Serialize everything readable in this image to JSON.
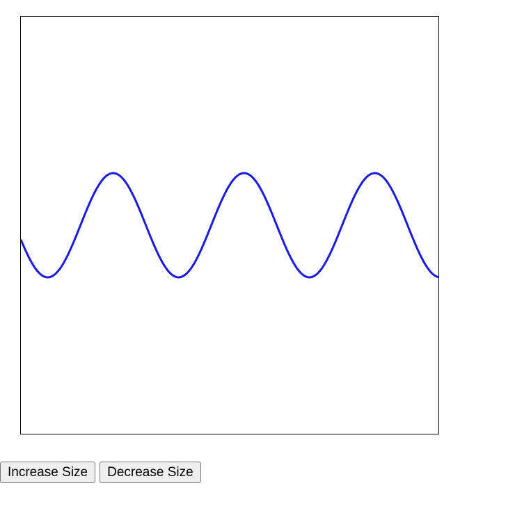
{
  "controls": {
    "increase_label": "Increase Size",
    "decrease_label": "Decrease Size"
  },
  "wave": {
    "color": "#1a1ae6",
    "amplitude": 75,
    "wavelength": 188,
    "phase": 0.28
  }
}
